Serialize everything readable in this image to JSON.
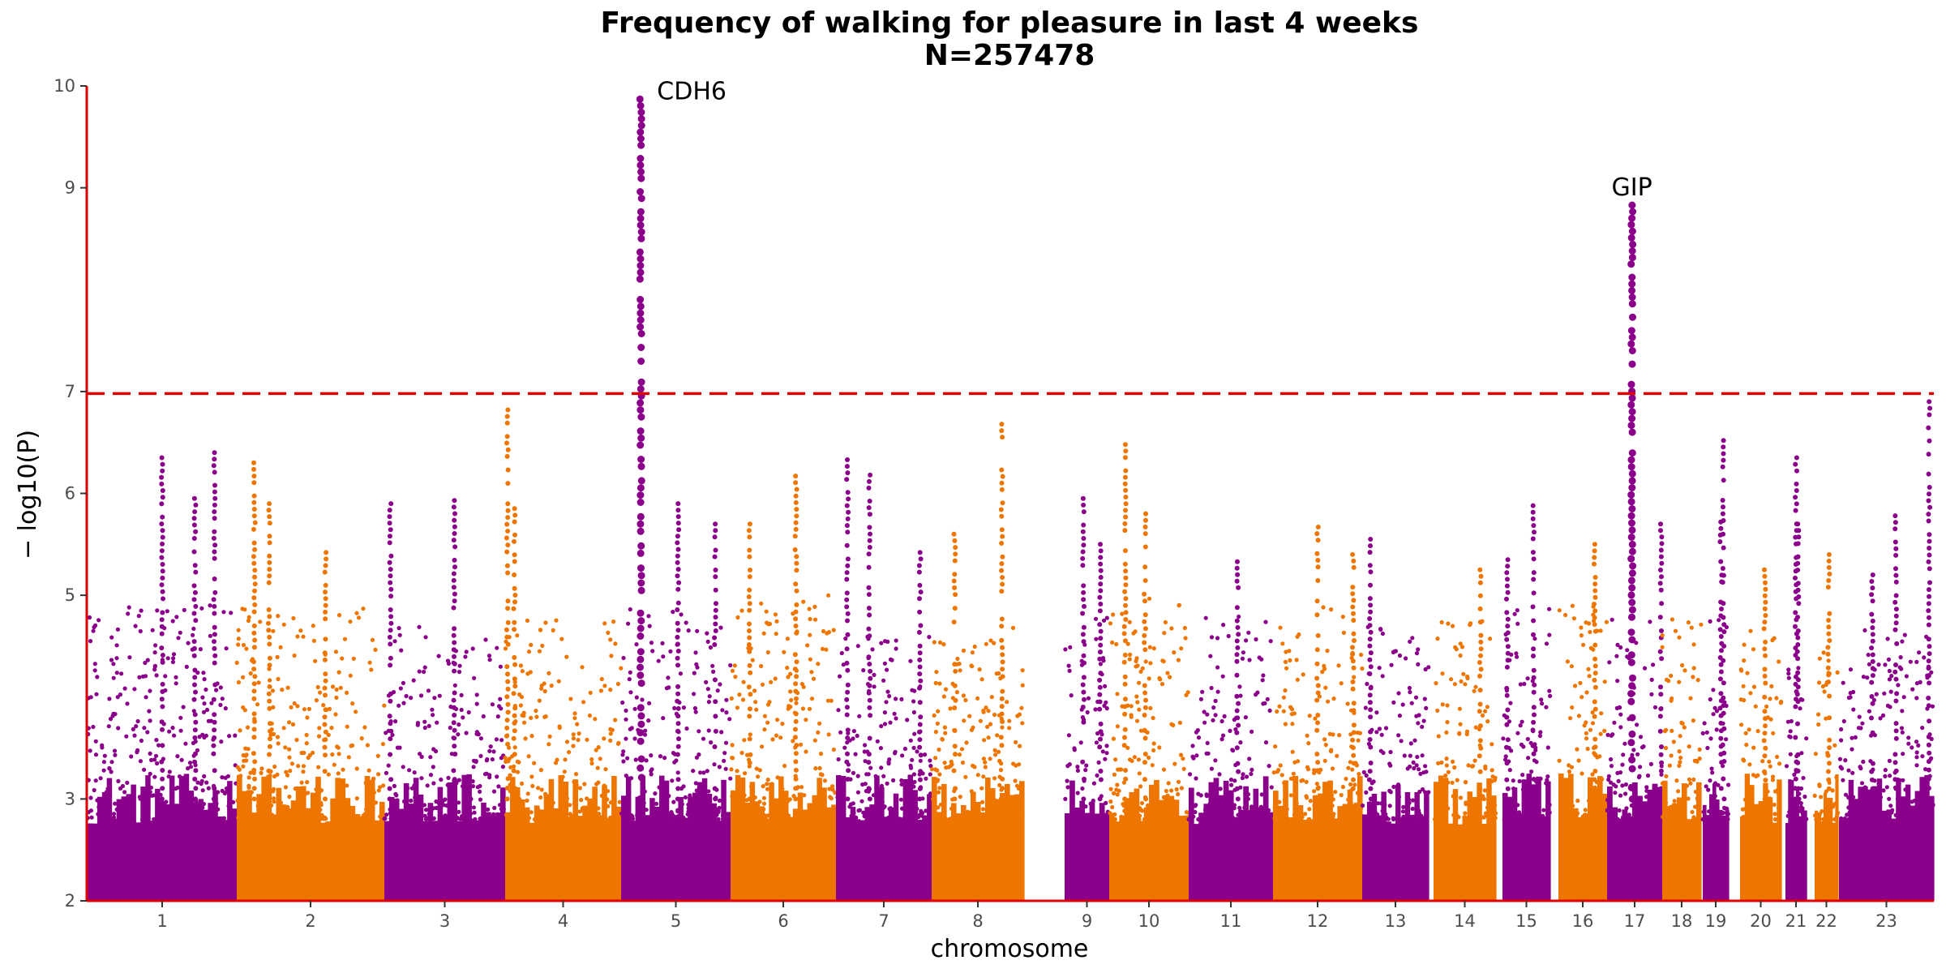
{
  "chart_data": {
    "type": "scatter",
    "subtype": "manhattan",
    "title": "Frequency of walking for pleasure in last 4 weeks",
    "subtitle": "N=257478",
    "xlabel": "chromosome",
    "ylabel": "− log10(P)",
    "ylim": [
      2,
      10
    ],
    "yticks": [
      2,
      3,
      5,
      6,
      7,
      9,
      10
    ],
    "grid": false,
    "legend": "none",
    "significance_threshold": 6.98,
    "colors": {
      "odd": "#8B008B",
      "even": "#EE7600",
      "axis": "#e00000",
      "threshold": "#e00000"
    },
    "chromosomes": [
      {
        "label": "1",
        "base_max": 4.9,
        "peaks": [
          {
            "pos": 0.5,
            "p": 6.35
          },
          {
            "pos": 0.85,
            "p": 6.4
          },
          {
            "pos": 0.72,
            "p": 5.95
          }
        ]
      },
      {
        "label": "2",
        "base_max": 4.9,
        "peaks": [
          {
            "pos": 0.22,
            "p": 5.9
          },
          {
            "pos": 0.6,
            "p": 5.42
          },
          {
            "pos": 0.12,
            "p": 6.3
          }
        ]
      },
      {
        "label": "3",
        "base_max": 4.7,
        "peaks": [
          {
            "pos": 0.05,
            "p": 5.9
          },
          {
            "pos": 0.58,
            "p": 5.93
          }
        ]
      },
      {
        "label": "4",
        "base_max": 4.8,
        "peaks": [
          {
            "pos": 0.02,
            "p": 6.82
          },
          {
            "pos": 0.08,
            "p": 5.85
          }
        ]
      },
      {
        "label": "5",
        "base_max": 4.9,
        "peaks": [
          {
            "pos": 0.18,
            "p": 9.87,
            "gene": "CDH6"
          },
          {
            "pos": 0.52,
            "p": 5.9
          },
          {
            "pos": 0.86,
            "p": 5.7
          }
        ]
      },
      {
        "label": "6",
        "base_max": 5.0,
        "peaks": [
          {
            "pos": 0.62,
            "p": 6.17
          },
          {
            "pos": 0.18,
            "p": 5.7
          }
        ]
      },
      {
        "label": "7",
        "base_max": 4.6,
        "peaks": [
          {
            "pos": 0.12,
            "p": 6.33
          },
          {
            "pos": 0.35,
            "p": 6.18
          },
          {
            "pos": 0.88,
            "p": 5.42
          }
        ]
      },
      {
        "label": "8",
        "base_max": 4.7,
        "peaks": [
          {
            "pos": 0.76,
            "p": 6.68
          },
          {
            "pos": 0.25,
            "p": 5.6
          }
        ]
      },
      {
        "label": "9",
        "base_max": 4.8,
        "peaks": [
          {
            "pos": 0.42,
            "p": 5.95
          },
          {
            "pos": 0.8,
            "p": 5.5
          }
        ]
      },
      {
        "label": "10",
        "base_max": 5.0,
        "peaks": [
          {
            "pos": 0.2,
            "p": 6.48
          },
          {
            "pos": 0.45,
            "p": 5.8
          }
        ]
      },
      {
        "label": "11",
        "base_max": 4.8,
        "peaks": [
          {
            "pos": 0.58,
            "p": 5.33
          }
        ]
      },
      {
        "label": "12",
        "base_max": 4.9,
        "peaks": [
          {
            "pos": 0.5,
            "p": 5.67
          },
          {
            "pos": 0.9,
            "p": 5.4
          }
        ]
      },
      {
        "label": "13",
        "base_max": 4.7,
        "peaks": [
          {
            "pos": 0.12,
            "p": 5.55
          }
        ]
      },
      {
        "label": "14",
        "base_max": 4.8,
        "peaks": [
          {
            "pos": 0.75,
            "p": 5.25
          }
        ]
      },
      {
        "label": "15",
        "base_max": 4.9,
        "peaks": [
          {
            "pos": 0.65,
            "p": 5.88
          },
          {
            "pos": 0.1,
            "p": 5.35
          }
        ]
      },
      {
        "label": "16",
        "base_max": 4.9,
        "peaks": [
          {
            "pos": 0.75,
            "p": 5.5
          }
        ]
      },
      {
        "label": "17",
        "base_max": 4.8,
        "peaks": [
          {
            "pos": 0.45,
            "p": 8.83,
            "gene": "GIP"
          },
          {
            "pos": 0.98,
            "p": 5.7
          }
        ]
      },
      {
        "label": "18",
        "base_max": 4.8,
        "peaks": []
      },
      {
        "label": "19",
        "base_max": 4.8,
        "peaks": [
          {
            "pos": 0.8,
            "p": 6.52
          },
          {
            "pos": 0.7,
            "p": 5.72
          }
        ]
      },
      {
        "label": "20",
        "base_max": 4.7,
        "peaks": [
          {
            "pos": 0.6,
            "p": 5.25
          }
        ]
      },
      {
        "label": "21",
        "base_max": 4.6,
        "peaks": [
          {
            "pos": 0.5,
            "p": 6.35
          },
          {
            "pos": 0.6,
            "p": 5.7
          }
        ]
      },
      {
        "label": "22",
        "base_max": 4.6,
        "peaks": [
          {
            "pos": 0.6,
            "p": 5.4
          }
        ]
      },
      {
        "label": "23",
        "base_max": 4.7,
        "peaks": [
          {
            "pos": 0.95,
            "p": 6.9
          },
          {
            "pos": 0.6,
            "p": 5.78
          },
          {
            "pos": 0.35,
            "p": 5.2
          }
        ]
      }
    ]
  }
}
